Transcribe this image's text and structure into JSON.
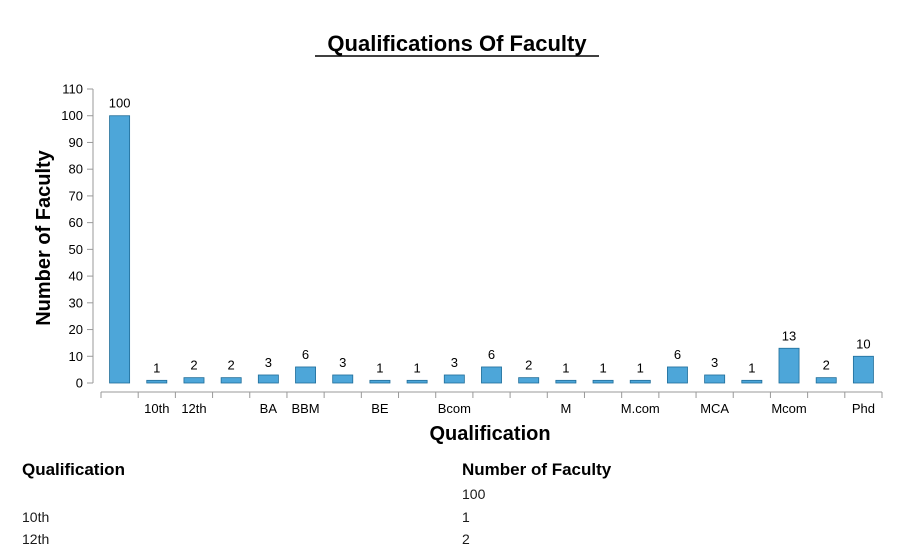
{
  "chart_data": {
    "type": "bar",
    "title": "Qualifications Of Faculty",
    "xlabel": "Qualification",
    "ylabel": "Number of Faculty",
    "ylim": [
      0,
      110
    ],
    "yticks": [
      "0",
      "10",
      "20",
      "30",
      "40",
      "50",
      "60",
      "70",
      "80",
      "90",
      "100",
      "110"
    ],
    "categories": [
      "",
      "10th",
      "12th",
      "",
      "BA",
      "BBM",
      "",
      "BE",
      "",
      "Bcom",
      "",
      "",
      "M",
      "",
      "M.com",
      "",
      "MCA",
      "",
      "Mcom",
      "",
      "Phd"
    ],
    "values": [
      100,
      1,
      2,
      2,
      3,
      6,
      3,
      1,
      1,
      3,
      6,
      2,
      1,
      1,
      1,
      6,
      3,
      1,
      13,
      2,
      10
    ],
    "bar_color": "#4da6d9",
    "grid": false
  },
  "table": {
    "headers": [
      "Qualification",
      "Number of Faculty"
    ],
    "rows": [
      [
        "",
        "100"
      ],
      [
        "10th",
        "1"
      ],
      [
        "12th",
        "2"
      ]
    ]
  }
}
